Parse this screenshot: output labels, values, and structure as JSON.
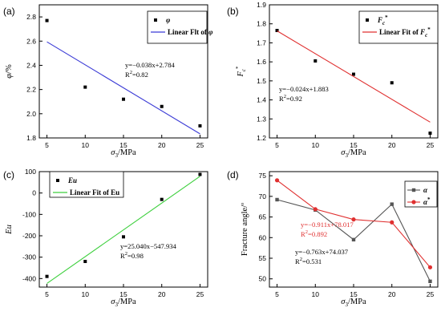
{
  "chart_data": [
    {
      "id": "a",
      "panel_label": "(a)",
      "type": "scatter",
      "xlabel": "σ3/MPa",
      "ylabel": "φ/%",
      "xlim": [
        4,
        26
      ],
      "ylim": [
        1.8,
        2.9
      ],
      "xticks": [
        5,
        10,
        15,
        20,
        25
      ],
      "yticks": [
        1.8,
        2.0,
        2.2,
        2.4,
        2.6,
        2.8
      ],
      "ytick_labels": [
        "1.8",
        "2.0",
        "2.2",
        "2.4",
        "2.6",
        "2.8"
      ],
      "series": [
        {
          "name": "φ",
          "kind": "points",
          "x": [
            5,
            10,
            15,
            20,
            25
          ],
          "y": [
            2.77,
            2.22,
            2.12,
            2.06,
            1.9
          ],
          "color": "#000000"
        },
        {
          "name": "Linear Flt of φ",
          "kind": "fit",
          "slope": -0.038,
          "intercept": 2.784,
          "x_range": [
            5,
            25
          ],
          "color": "#3b3bd6"
        }
      ],
      "annotation": [
        "y=−0.038x+2.784",
        "R2=0.82"
      ],
      "legend_position": "top-right"
    },
    {
      "id": "b",
      "panel_label": "(b)",
      "type": "scatter",
      "xlabel": "σ3/MPa",
      "ylabel": "Fc*",
      "xlim": [
        4,
        26
      ],
      "ylim": [
        1.2,
        1.9
      ],
      "xticks": [
        5,
        10,
        15,
        20,
        25
      ],
      "yticks": [
        1.2,
        1.3,
        1.4,
        1.5,
        1.6,
        1.7,
        1.8,
        1.9
      ],
      "ytick_labels": [
        "1.2",
        "1.3",
        "1.4",
        "1.5",
        "1.6",
        "1.7",
        "1.8",
        "1.9"
      ],
      "series": [
        {
          "name": "Fc*",
          "kind": "points",
          "x": [
            5,
            10,
            15,
            20,
            25
          ],
          "y": [
            1.765,
            1.605,
            1.535,
            1.49,
            1.225
          ],
          "color": "#000000"
        },
        {
          "name": "Linear Fit of Fc*",
          "kind": "fit",
          "slope": -0.024,
          "intercept": 1.883,
          "x_range": [
            5,
            25
          ],
          "color": "#e03030"
        }
      ],
      "annotation": [
        "y=−0.024x+1.883",
        "R2=0.92"
      ],
      "legend_position": "top-right"
    },
    {
      "id": "c",
      "panel_label": "(c)",
      "type": "scatter",
      "xlabel": "σ3/MPa",
      "ylabel": "Eu",
      "xlim": [
        4,
        26
      ],
      "ylim": [
        -440,
        100
      ],
      "xticks": [
        5,
        10,
        15,
        20,
        25
      ],
      "yticks": [
        -400,
        -300,
        -200,
        -100,
        0,
        100
      ],
      "ytick_labels": [
        "-400",
        "-300",
        "-200",
        "-100",
        "0",
        "100"
      ],
      "series": [
        {
          "name": "Eu",
          "kind": "points",
          "x": [
            5,
            10,
            15,
            20,
            25
          ],
          "y": [
            -390,
            -320,
            -205,
            -30,
            87
          ],
          "color": "#000000"
        },
        {
          "name": "Linear Fit of Eu",
          "kind": "fit",
          "slope": 25.04,
          "intercept": -547.934,
          "x_range": [
            5,
            25
          ],
          "color": "#3ccf3c"
        }
      ],
      "annotation": [
        "y=25.040x−547.934",
        "R2=0.98"
      ],
      "legend_position": "top-left"
    },
    {
      "id": "d",
      "panel_label": "(d)",
      "type": "line",
      "xlabel": "σ3/MPa",
      "ylabel": "Fracture angle/°",
      "xlim": [
        4,
        26
      ],
      "ylim": [
        48,
        76
      ],
      "xticks": [
        5,
        10,
        15,
        20,
        25
      ],
      "yticks": [
        50,
        55,
        60,
        65,
        70,
        75
      ],
      "ytick_labels": [
        "50",
        "55",
        "60",
        "65",
        "70",
        "75"
      ],
      "series": [
        {
          "name": "α",
          "kind": "line-square",
          "x": [
            5,
            10,
            15,
            20,
            25
          ],
          "y": [
            69.2,
            66.7,
            59.5,
            68.1,
            49.4
          ],
          "color": "#555555"
        },
        {
          "name": "α*",
          "kind": "line-circle",
          "x": [
            5,
            10,
            15,
            20,
            25
          ],
          "y": [
            73.9,
            66.9,
            64.4,
            63.7,
            52.8
          ],
          "color": "#e03030"
        }
      ],
      "annotations": [
        {
          "lines": [
            "y=−0.911x+78.017",
            "R2=0.892"
          ],
          "color": "#e03030"
        },
        {
          "lines": [
            "y=−0.763x+74.037",
            "R2=0.531"
          ],
          "color": "#000000"
        }
      ],
      "legend_position": "top-right"
    }
  ]
}
